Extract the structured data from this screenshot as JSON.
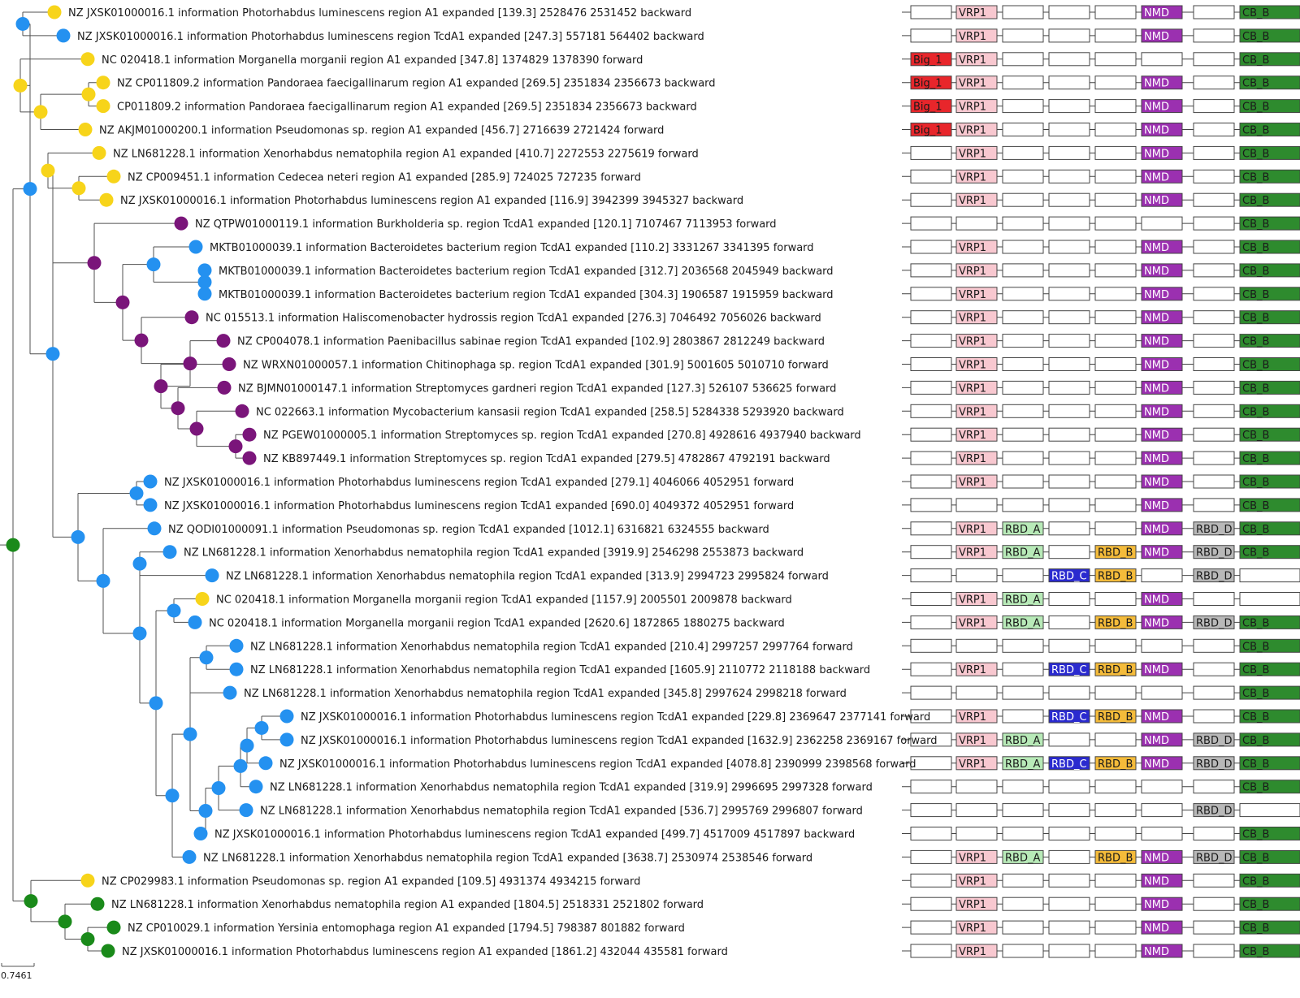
{
  "domain_colors": {
    "empty": "#ffffff",
    "Big_1": "#e8262b",
    "VRP1": "#f8c8d0",
    "RBD_A": "#b8eab8",
    "RBD_C": "#2a2acf",
    "RBD_B": "#f4bb3a",
    "NMD": "#9b30b0",
    "RBD_D": "#b8b8b8",
    "CB_B": "#2e8b2e"
  },
  "node_colors": {
    "yellow": "#f7d41a",
    "blue": "#2491f0",
    "purple": "#7a157a",
    "green": "#1a8a1a"
  },
  "slot_order": [
    "slot1",
    "slot2",
    "slot3",
    "slot4",
    "slot5",
    "slot6",
    "slot7",
    "slot8"
  ],
  "leaves": [
    {
      "label": "NZ JXSK01000016.1 information Photorhabdus luminescens region A1 expanded [139.3] 2528476 2531452 backward",
      "color": "yellow",
      "domains": [
        "",
        "VRP1",
        "",
        "",
        "",
        "NMD",
        "",
        "CB_B"
      ]
    },
    {
      "label": "NZ JXSK01000016.1 information Photorhabdus luminescens region TcdA1 expanded [247.3] 557181 564402 backward",
      "color": "blue",
      "domains": [
        "",
        "VRP1",
        "",
        "",
        "",
        "NMD",
        "",
        "CB_B"
      ]
    },
    {
      "label": "NC 020418.1 information Morganella morganii region A1 expanded [347.8] 1374829 1378390 forward",
      "color": "yellow",
      "domains": [
        "Big_1",
        "VRP1",
        "",
        "",
        "",
        "",
        "",
        "CB_B"
      ]
    },
    {
      "label": "NZ CP011809.2 information Pandoraea faecigallinarum region A1 expanded [269.5] 2351834 2356673 backward",
      "color": "yellow",
      "domains": [
        "Big_1",
        "VRP1",
        "",
        "",
        "",
        "NMD",
        "",
        "CB_B"
      ]
    },
    {
      "label": "CP011809.2 information Pandoraea faecigallinarum region A1 expanded [269.5] 2351834 2356673 backward",
      "color": "yellow",
      "domains": [
        "Big_1",
        "VRP1",
        "",
        "",
        "",
        "NMD",
        "",
        "CB_B"
      ]
    },
    {
      "label": "NZ AKJM01000200.1 information Pseudomonas sp. region A1 expanded [456.7] 2716639 2721424 forward",
      "color": "yellow",
      "domains": [
        "Big_1",
        "VRP1",
        "",
        "",
        "",
        "NMD",
        "",
        "CB_B"
      ]
    },
    {
      "label": "NZ LN681228.1 information Xenorhabdus nematophila region A1 expanded [410.7] 2272553 2275619 forward",
      "color": "yellow",
      "domains": [
        "",
        "VRP1",
        "",
        "",
        "",
        "NMD",
        "",
        "CB_B"
      ]
    },
    {
      "label": "NZ CP009451.1 information Cedecea neteri region A1 expanded [285.9] 724025 727235 forward",
      "color": "yellow",
      "domains": [
        "",
        "VRP1",
        "",
        "",
        "",
        "NMD",
        "",
        "CB_B"
      ]
    },
    {
      "label": "NZ JXSK01000016.1 information Photorhabdus luminescens region A1 expanded [116.9] 3942399 3945327 backward",
      "color": "yellow",
      "domains": [
        "",
        "VRP1",
        "",
        "",
        "",
        "NMD",
        "",
        "CB_B"
      ]
    },
    {
      "label": "NZ QTPW01000119.1 information Burkholderia sp. region TcdA1 expanded [120.1] 7107467 7113953 forward",
      "color": "purple",
      "domains": [
        "",
        "",
        "",
        "",
        "",
        "",
        "",
        "CB_B"
      ]
    },
    {
      "label": "MKTB01000039.1 information Bacteroidetes bacterium region TcdA1 expanded [110.2] 3331267 3341395 forward",
      "color": "blue",
      "domains": [
        "",
        "VRP1",
        "",
        "",
        "",
        "NMD",
        "",
        "CB_B"
      ]
    },
    {
      "label": "MKTB01000039.1 information Bacteroidetes bacterium region TcdA1 expanded [312.7] 2036568 2045949 backward",
      "color": "blue",
      "domains": [
        "",
        "VRP1",
        "",
        "",
        "",
        "NMD",
        "",
        "CB_B"
      ]
    },
    {
      "label": "MKTB01000039.1 information Bacteroidetes bacterium region TcdA1 expanded [304.3] 1906587 1915959 backward",
      "color": "blue",
      "domains": [
        "",
        "VRP1",
        "",
        "",
        "",
        "NMD",
        "",
        "CB_B"
      ]
    },
    {
      "label": "NC 015513.1 information Haliscomenobacter hydrossis region TcdA1 expanded [276.3] 7046492 7056026 backward",
      "color": "purple",
      "domains": [
        "",
        "VRP1",
        "",
        "",
        "",
        "NMD",
        "",
        "CB_B"
      ]
    },
    {
      "label": "NZ CP004078.1 information Paenibacillus sabinae region TcdA1 expanded [102.9] 2803867 2812249 backward",
      "color": "purple",
      "domains": [
        "",
        "VRP1",
        "",
        "",
        "",
        "NMD",
        "",
        "CB_B"
      ]
    },
    {
      "label": "NZ WRXN01000057.1 information Chitinophaga sp. region TcdA1 expanded [301.9] 5001605 5010710 forward",
      "color": "purple",
      "domains": [
        "",
        "VRP1",
        "",
        "",
        "",
        "NMD",
        "",
        "CB_B"
      ]
    },
    {
      "label": "NZ BJMN01000147.1 information Streptomyces gardneri region TcdA1 expanded [127.3] 526107 536625 forward",
      "color": "purple",
      "domains": [
        "",
        "VRP1",
        "",
        "",
        "",
        "NMD",
        "",
        "CB_B"
      ]
    },
    {
      "label": "NC 022663.1 information Mycobacterium kansasii region TcdA1 expanded [258.5] 5284338 5293920 backward",
      "color": "purple",
      "domains": [
        "",
        "VRP1",
        "",
        "",
        "",
        "NMD",
        "",
        "CB_B"
      ]
    },
    {
      "label": "NZ PGEW01000005.1 information Streptomyces sp. region TcdA1 expanded [270.8] 4928616 4937940 backward",
      "color": "purple",
      "domains": [
        "",
        "VRP1",
        "",
        "",
        "",
        "NMD",
        "",
        "CB_B"
      ]
    },
    {
      "label": "NZ KB897449.1 information Streptomyces sp. region TcdA1 expanded [279.5] 4782867 4792191 backward",
      "color": "purple",
      "domains": [
        "",
        "VRP1",
        "",
        "",
        "",
        "NMD",
        "",
        "CB_B"
      ]
    },
    {
      "label": "NZ JXSK01000016.1 information Photorhabdus luminescens region TcdA1 expanded [279.1] 4046066 4052951 forward",
      "color": "blue",
      "domains": [
        "",
        "VRP1",
        "",
        "",
        "",
        "NMD",
        "",
        "CB_B"
      ]
    },
    {
      "label": "NZ JXSK01000016.1 information Photorhabdus luminescens region TcdA1 expanded [690.0] 4049372 4052951 forward",
      "color": "blue",
      "domains": [
        "",
        "",
        "",
        "",
        "",
        "NMD",
        "",
        "CB_B"
      ]
    },
    {
      "label": "NZ QODI01000091.1 information Pseudomonas sp. region TcdA1 expanded [1012.1] 6316821 6324555 backward",
      "color": "blue",
      "domains": [
        "",
        "VRP1",
        "RBD_A",
        "",
        "",
        "NMD",
        "RBD_D",
        "CB_B"
      ]
    },
    {
      "label": "NZ LN681228.1 information Xenorhabdus nematophila region TcdA1 expanded [3919.9] 2546298 2553873 backward",
      "color": "blue",
      "domains": [
        "",
        "VRP1",
        "RBD_A",
        "",
        "RBD_B",
        "NMD",
        "RBD_D",
        "CB_B"
      ]
    },
    {
      "label": "NZ LN681228.1 information Xenorhabdus nematophila region TcdA1 expanded [313.9] 2994723 2995824 forward",
      "color": "blue",
      "domains": [
        "",
        "",
        "",
        "RBD_C",
        "RBD_B",
        "",
        "RBD_D",
        ""
      ]
    },
    {
      "label": "NC 020418.1 information Morganella morganii region TcdA1 expanded [1157.9] 2005501 2009878 backward",
      "color": "yellow",
      "domains": [
        "",
        "VRP1",
        "RBD_A",
        "",
        "",
        "NMD",
        "",
        ""
      ]
    },
    {
      "label": "NC 020418.1 information Morganella morganii region TcdA1 expanded [2620.6] 1872865 1880275 backward",
      "color": "blue",
      "domains": [
        "",
        "VRP1",
        "RBD_A",
        "",
        "RBD_B",
        "NMD",
        "RBD_D",
        "CB_B"
      ]
    },
    {
      "label": "NZ LN681228.1 information Xenorhabdus nematophila region TcdA1 expanded [210.4] 2997257 2997764 forward",
      "color": "blue",
      "domains": [
        "",
        "",
        "",
        "",
        "",
        "",
        "",
        "CB_B"
      ]
    },
    {
      "label": "NZ LN681228.1 information Xenorhabdus nematophila region TcdA1 expanded [1605.9] 2110772 2118188 backward",
      "color": "blue",
      "domains": [
        "",
        "VRP1",
        "",
        "RBD_C",
        "RBD_B",
        "NMD",
        "",
        "CB_B"
      ]
    },
    {
      "label": "NZ LN681228.1 information Xenorhabdus nematophila region TcdA1 expanded [345.8] 2997624 2998218 forward",
      "color": "blue",
      "domains": [
        "",
        "",
        "",
        "",
        "",
        "",
        "",
        "CB_B"
      ]
    },
    {
      "label": "NZ JXSK01000016.1 information Photorhabdus luminescens region TcdA1 expanded [229.8] 2369647 2377141 forward",
      "color": "blue",
      "domains": [
        "",
        "VRP1",
        "",
        "RBD_C",
        "RBD_B",
        "NMD",
        "",
        "CB_B"
      ]
    },
    {
      "label": "NZ JXSK01000016.1 information Photorhabdus luminescens region TcdA1 expanded [1632.9] 2362258 2369167 forward",
      "color": "blue",
      "domains": [
        "",
        "VRP1",
        "RBD_A",
        "",
        "",
        "NMD",
        "RBD_D",
        "CB_B"
      ]
    },
    {
      "label": "NZ JXSK01000016.1 information Photorhabdus luminescens region TcdA1 expanded [4078.8] 2390999 2398568 forward",
      "color": "blue",
      "domains": [
        "",
        "VRP1",
        "RBD_A",
        "RBD_C",
        "RBD_B",
        "NMD",
        "RBD_D",
        "CB_B"
      ]
    },
    {
      "label": "NZ LN681228.1 information Xenorhabdus nematophila region TcdA1 expanded [319.9] 2996695 2997328 forward",
      "color": "blue",
      "domains": [
        "",
        "",
        "",
        "",
        "",
        "",
        "",
        "CB_B"
      ]
    },
    {
      "label": "NZ LN681228.1 information Xenorhabdus nematophila region TcdA1 expanded [536.7] 2995769 2996807 forward",
      "color": "blue",
      "domains": [
        "",
        "",
        "",
        "",
        "",
        "",
        "RBD_D",
        ""
      ]
    },
    {
      "label": "NZ JXSK01000016.1 information Photorhabdus luminescens region TcdA1 expanded [499.7] 4517009 4517897 backward",
      "color": "blue",
      "domains": [
        "",
        "",
        "",
        "",
        "",
        "",
        "",
        "CB_B"
      ]
    },
    {
      "label": "NZ LN681228.1 information Xenorhabdus nematophila region TcdA1 expanded [3638.7] 2530974 2538546 forward",
      "color": "blue",
      "domains": [
        "",
        "VRP1",
        "RBD_A",
        "",
        "RBD_B",
        "NMD",
        "RBD_D",
        "CB_B"
      ]
    },
    {
      "label": "NZ CP029983.1 information Pseudomonas sp. region A1 expanded [109.5] 4931374 4934215 forward",
      "color": "yellow",
      "domains": [
        "",
        "VRP1",
        "",
        "",
        "",
        "NMD",
        "",
        "CB_B"
      ]
    },
    {
      "label": "NZ LN681228.1 information Xenorhabdus nematophila region A1 expanded [1804.5] 2518331 2521802 forward",
      "color": "green",
      "domains": [
        "",
        "VRP1",
        "",
        "",
        "",
        "NMD",
        "",
        "CB_B"
      ]
    },
    {
      "label": "NZ CP010029.1 information Yersinia entomophaga region A1 expanded [1794.5] 798387 801882 forward",
      "color": "green",
      "domains": [
        "",
        "VRP1",
        "",
        "",
        "",
        "NMD",
        "",
        "CB_B"
      ]
    },
    {
      "label": "NZ JXSK01000016.1 information Photorhabdus luminescens region A1 expanded [1861.2] 432044 435581 forward",
      "color": "green",
      "domains": [
        "",
        "VRP1",
        "",
        "",
        "",
        "NMD",
        "",
        "CB_B"
      ]
    }
  ],
  "scale_bar": {
    "label": "0.7461"
  }
}
